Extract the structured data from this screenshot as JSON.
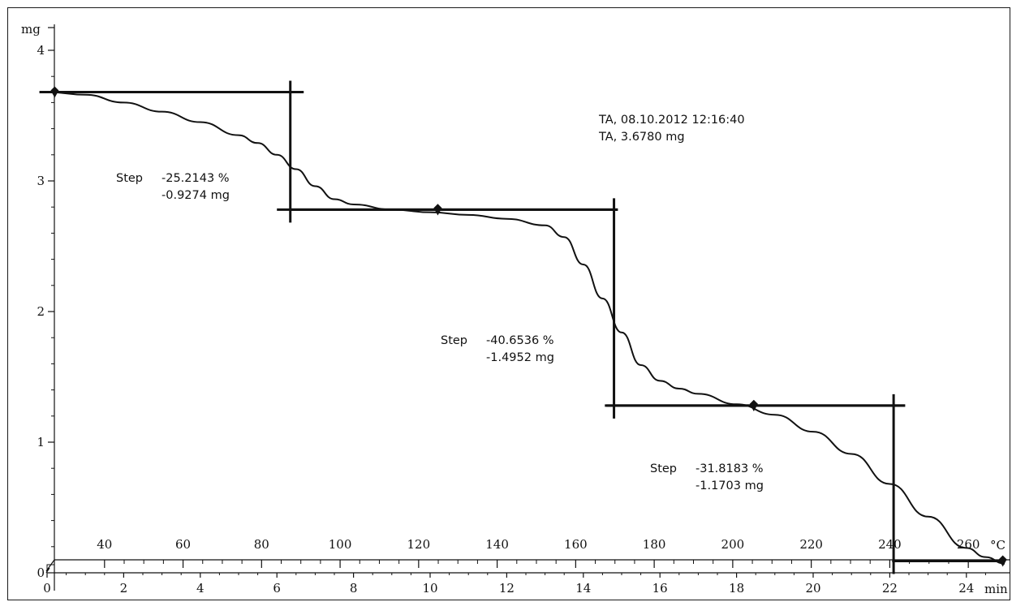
{
  "chart_data": {
    "type": "line",
    "y_unit": "mg",
    "x_unit": "min",
    "x2_unit": "°C",
    "ylim": [
      0,
      4.2
    ],
    "xlim": [
      0,
      25
    ],
    "y_ticks": [
      0,
      1,
      2,
      3,
      4
    ],
    "x_ticks": [
      0,
      2,
      4,
      6,
      8,
      10,
      12,
      14,
      16,
      18,
      20,
      22,
      24
    ],
    "temperature_axis": {
      "ticks": [
        40,
        60,
        80,
        100,
        120,
        140,
        160,
        180,
        200,
        220,
        240,
        260
      ],
      "tick_positions_min": [
        1.5,
        3.55,
        5.6,
        7.65,
        9.7,
        11.75,
        13.8,
        15.85,
        17.9,
        19.95,
        22.0,
        24.05
      ]
    },
    "series": [
      {
        "x": [
          0,
          1,
          2,
          3,
          4,
          5,
          5.5,
          6,
          6.5,
          7,
          7.5,
          8,
          9,
          10,
          11,
          12,
          13,
          13.5,
          14,
          14.5,
          15,
          15.5,
          16,
          16.5,
          17,
          18,
          19,
          20,
          21,
          22,
          23,
          24,
          24.5,
          25
        ],
        "y": [
          3.68,
          3.66,
          3.6,
          3.53,
          3.45,
          3.35,
          3.29,
          3.2,
          3.09,
          2.96,
          2.86,
          2.82,
          2.78,
          2.76,
          2.74,
          2.71,
          2.66,
          2.57,
          2.36,
          2.1,
          1.84,
          1.59,
          1.47,
          1.41,
          1.37,
          1.29,
          1.21,
          1.08,
          0.91,
          0.68,
          0.43,
          0.19,
          0.12,
          0.07
        ]
      }
    ],
    "info_lines": [
      "TA, 08.10.2012 12:16:40",
      "TA, 3.6780 mg"
    ],
    "steps": [
      {
        "label": "Step",
        "percent": "-25.2143 %",
        "mass": "-0.9274 mg",
        "upper_level": 3.68,
        "lower_level": 2.78,
        "x_marker": 6.35,
        "x_from": -0.2,
        "x_to": 6.7,
        "x_lower_to": 14.9,
        "upper_point": 0.2,
        "lower_point": 10.2
      },
      {
        "label": "Step",
        "percent": "-40.6536 %",
        "mass": "-1.4952 mg",
        "upper_level": 2.78,
        "lower_level": 1.28,
        "x_marker": 14.8,
        "x_from": 6.0,
        "x_to": 14.9,
        "x_lower_to": 22.4,
        "upper_point": 10.2,
        "lower_point": 18.45
      },
      {
        "label": "Step",
        "percent": "-31.8183 %",
        "mass": "-1.1703 mg",
        "upper_level": 1.28,
        "lower_level": 0.09,
        "x_marker": 22.1,
        "x_from": 14.6,
        "x_to": 22.4,
        "x_lower_to": 25.0,
        "upper_point": 18.45,
        "lower_point": 24.95
      }
    ]
  }
}
